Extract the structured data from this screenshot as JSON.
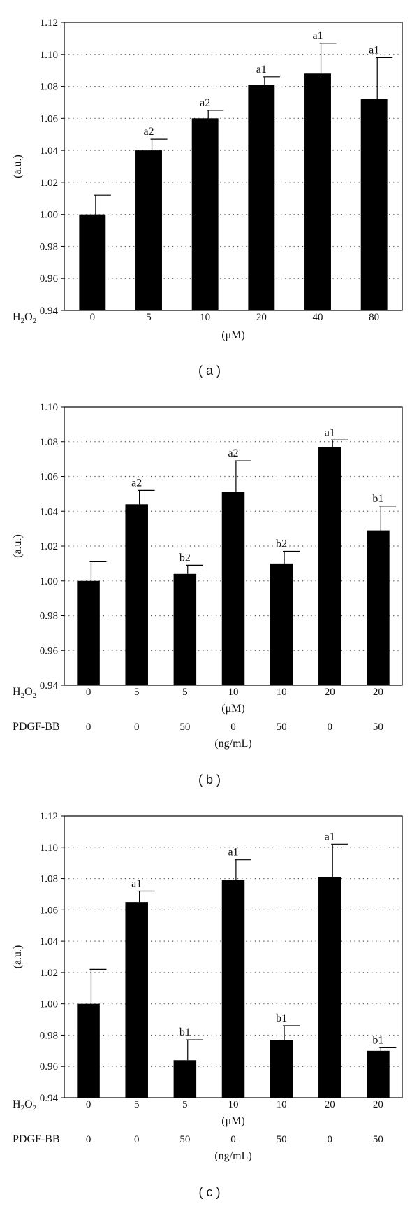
{
  "chart_data": [
    {
      "type": "bar",
      "panel_label": "( a )",
      "ylabel": "(a.u.)",
      "ylim": [
        0.94,
        1.12
      ],
      "yticks": [
        "0.94",
        "0.96",
        "0.98",
        "1.00",
        "1.02",
        "1.04",
        "1.06",
        "1.08",
        "1.10",
        "1.12"
      ],
      "grid": "dotted horizontal",
      "rows": [
        {
          "label_main": "H",
          "label_sub": "2",
          "label_main2": "O",
          "label_sub2": "2",
          "values": [
            "0",
            "5",
            "10",
            "20",
            "40",
            "80"
          ]
        }
      ],
      "units": [
        "(μM)"
      ],
      "values": [
        1.0,
        1.04,
        1.06,
        1.081,
        1.088,
        1.072
      ],
      "errors": [
        0.012,
        0.007,
        0.005,
        0.005,
        0.019,
        0.026
      ],
      "annotations": [
        "",
        "a2",
        "a2",
        "a1",
        "a1",
        "a1"
      ]
    },
    {
      "type": "bar",
      "panel_label": "( b )",
      "ylabel": "(a.u.)",
      "ylim": [
        0.94,
        1.1
      ],
      "yticks": [
        "0.94",
        "0.96",
        "0.98",
        "1.00",
        "1.02",
        "1.04",
        "1.06",
        "1.08",
        "1.10"
      ],
      "grid": "dotted horizontal",
      "rows": [
        {
          "label_main": "H",
          "label_sub": "2",
          "label_main2": "O",
          "label_sub2": "2",
          "values": [
            "0",
            "5",
            "5",
            "10",
            "10",
            "20",
            "20"
          ]
        },
        {
          "label_main": "PDGF-BB",
          "values": [
            "0",
            "0",
            "50",
            "0",
            "50",
            "0",
            "50"
          ]
        }
      ],
      "units": [
        "(μM)",
        "(ng/mL)"
      ],
      "values": [
        1.0,
        1.044,
        1.004,
        1.051,
        1.01,
        1.077,
        1.029
      ],
      "errors": [
        0.011,
        0.008,
        0.005,
        0.018,
        0.007,
        0.004,
        0.014
      ],
      "annotations": [
        "",
        "a2",
        "b2",
        "a2",
        "b2",
        "a1",
        "b1"
      ]
    },
    {
      "type": "bar",
      "panel_label": "( c )",
      "ylabel": "(a.u.)",
      "ylim": [
        0.94,
        1.12
      ],
      "yticks": [
        "0.94",
        "0.96",
        "0.98",
        "1.00",
        "1.02",
        "1.04",
        "1.06",
        "1.08",
        "1.10",
        "1.12"
      ],
      "grid": "dotted horizontal",
      "rows": [
        {
          "label_main": "H",
          "label_sub": "2",
          "label_main2": "O",
          "label_sub2": "2",
          "values": [
            "0",
            "5",
            "5",
            "10",
            "10",
            "20",
            "20"
          ]
        },
        {
          "label_main": "PDGF-BB",
          "values": [
            "0",
            "0",
            "50",
            "0",
            "50",
            "0",
            "50"
          ]
        }
      ],
      "units": [
        "(μM)",
        "(ng/mL)"
      ],
      "values": [
        1.0,
        1.065,
        0.964,
        1.079,
        0.977,
        1.081,
        0.97
      ],
      "errors": [
        0.022,
        0.007,
        0.013,
        0.013,
        0.009,
        0.021,
        0.002
      ],
      "annotations": [
        "",
        "a1",
        "b1",
        "a1",
        "b1",
        "a1",
        "b1"
      ]
    }
  ]
}
